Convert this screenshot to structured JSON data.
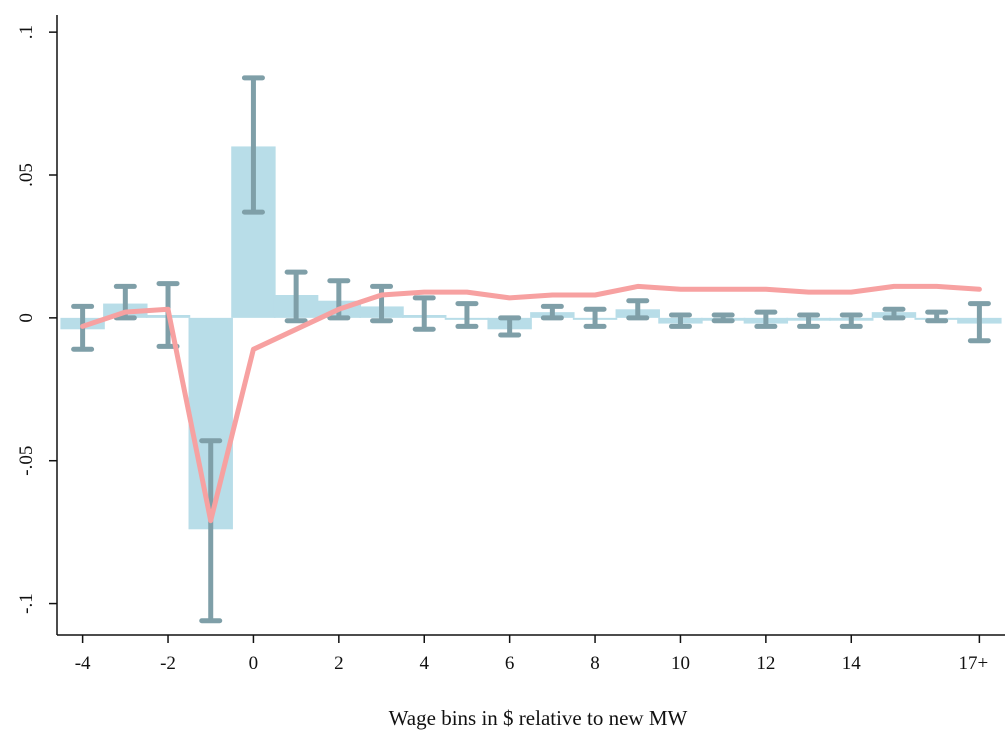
{
  "chart_data": {
    "type": "bar",
    "title": "",
    "xlabel": "Wage bins in $ relative to new MW",
    "ylabel": "",
    "x_tick_labels": [
      "-4",
      "-2",
      "0",
      "2",
      "4",
      "6",
      "8",
      "10",
      "12",
      "14",
      "17+"
    ],
    "x_tick_values": [
      -4,
      -2,
      0,
      2,
      4,
      6,
      8,
      10,
      12,
      14,
      17
    ],
    "y_tick_labels": [
      "-.1",
      "-.05",
      "0",
      ".05",
      ".1"
    ],
    "y_tick_values": [
      -0.1,
      -0.05,
      0,
      0.05,
      0.1
    ],
    "xlim": [
      -4.6,
      17.6
    ],
    "ylim": [
      -0.111,
      0.106
    ],
    "grid": false,
    "x": [
      -4,
      -3,
      -2,
      -1,
      0,
      1,
      2,
      3,
      4,
      5,
      6,
      7,
      8,
      9,
      10,
      11,
      12,
      13,
      14,
      15,
      16,
      17
    ],
    "series": [
      {
        "kind": "bar",
        "values": [
          -0.004,
          0.005,
          0.001,
          -0.074,
          0.06,
          0.008,
          0.006,
          0.004,
          0.001,
          0.0,
          -0.004,
          0.002,
          0.0,
          0.003,
          -0.002,
          -0.001,
          -0.002,
          -0.001,
          -0.001,
          0.002,
          0.0,
          -0.002
        ],
        "ci_low": [
          -0.011,
          0.0,
          -0.01,
          -0.106,
          0.037,
          -0.001,
          0.0,
          -0.001,
          -0.004,
          -0.003,
          -0.006,
          0.0,
          -0.003,
          0.0,
          -0.003,
          -0.001,
          -0.003,
          -0.003,
          -0.003,
          0.0,
          -0.001,
          -0.008
        ],
        "ci_high": [
          0.004,
          0.011,
          0.012,
          -0.043,
          0.084,
          0.016,
          0.013,
          0.011,
          0.007,
          0.005,
          0.0,
          0.004,
          0.003,
          0.006,
          0.001,
          0.001,
          0.002,
          0.001,
          0.001,
          0.003,
          0.002,
          0.005
        ]
      },
      {
        "kind": "line",
        "values": [
          -0.003,
          0.002,
          0.003,
          -0.071,
          -0.011,
          -0.004,
          0.003,
          0.008,
          0.009,
          0.009,
          0.007,
          0.008,
          0.008,
          0.011,
          0.01,
          0.01,
          0.01,
          0.009,
          0.009,
          0.011,
          0.011,
          0.01
        ]
      }
    ],
    "colors": {
      "bar": "#b8dde8",
      "error_bar": "#7f9fa8",
      "line": "#f7a1a1",
      "axis": "#111111"
    }
  }
}
